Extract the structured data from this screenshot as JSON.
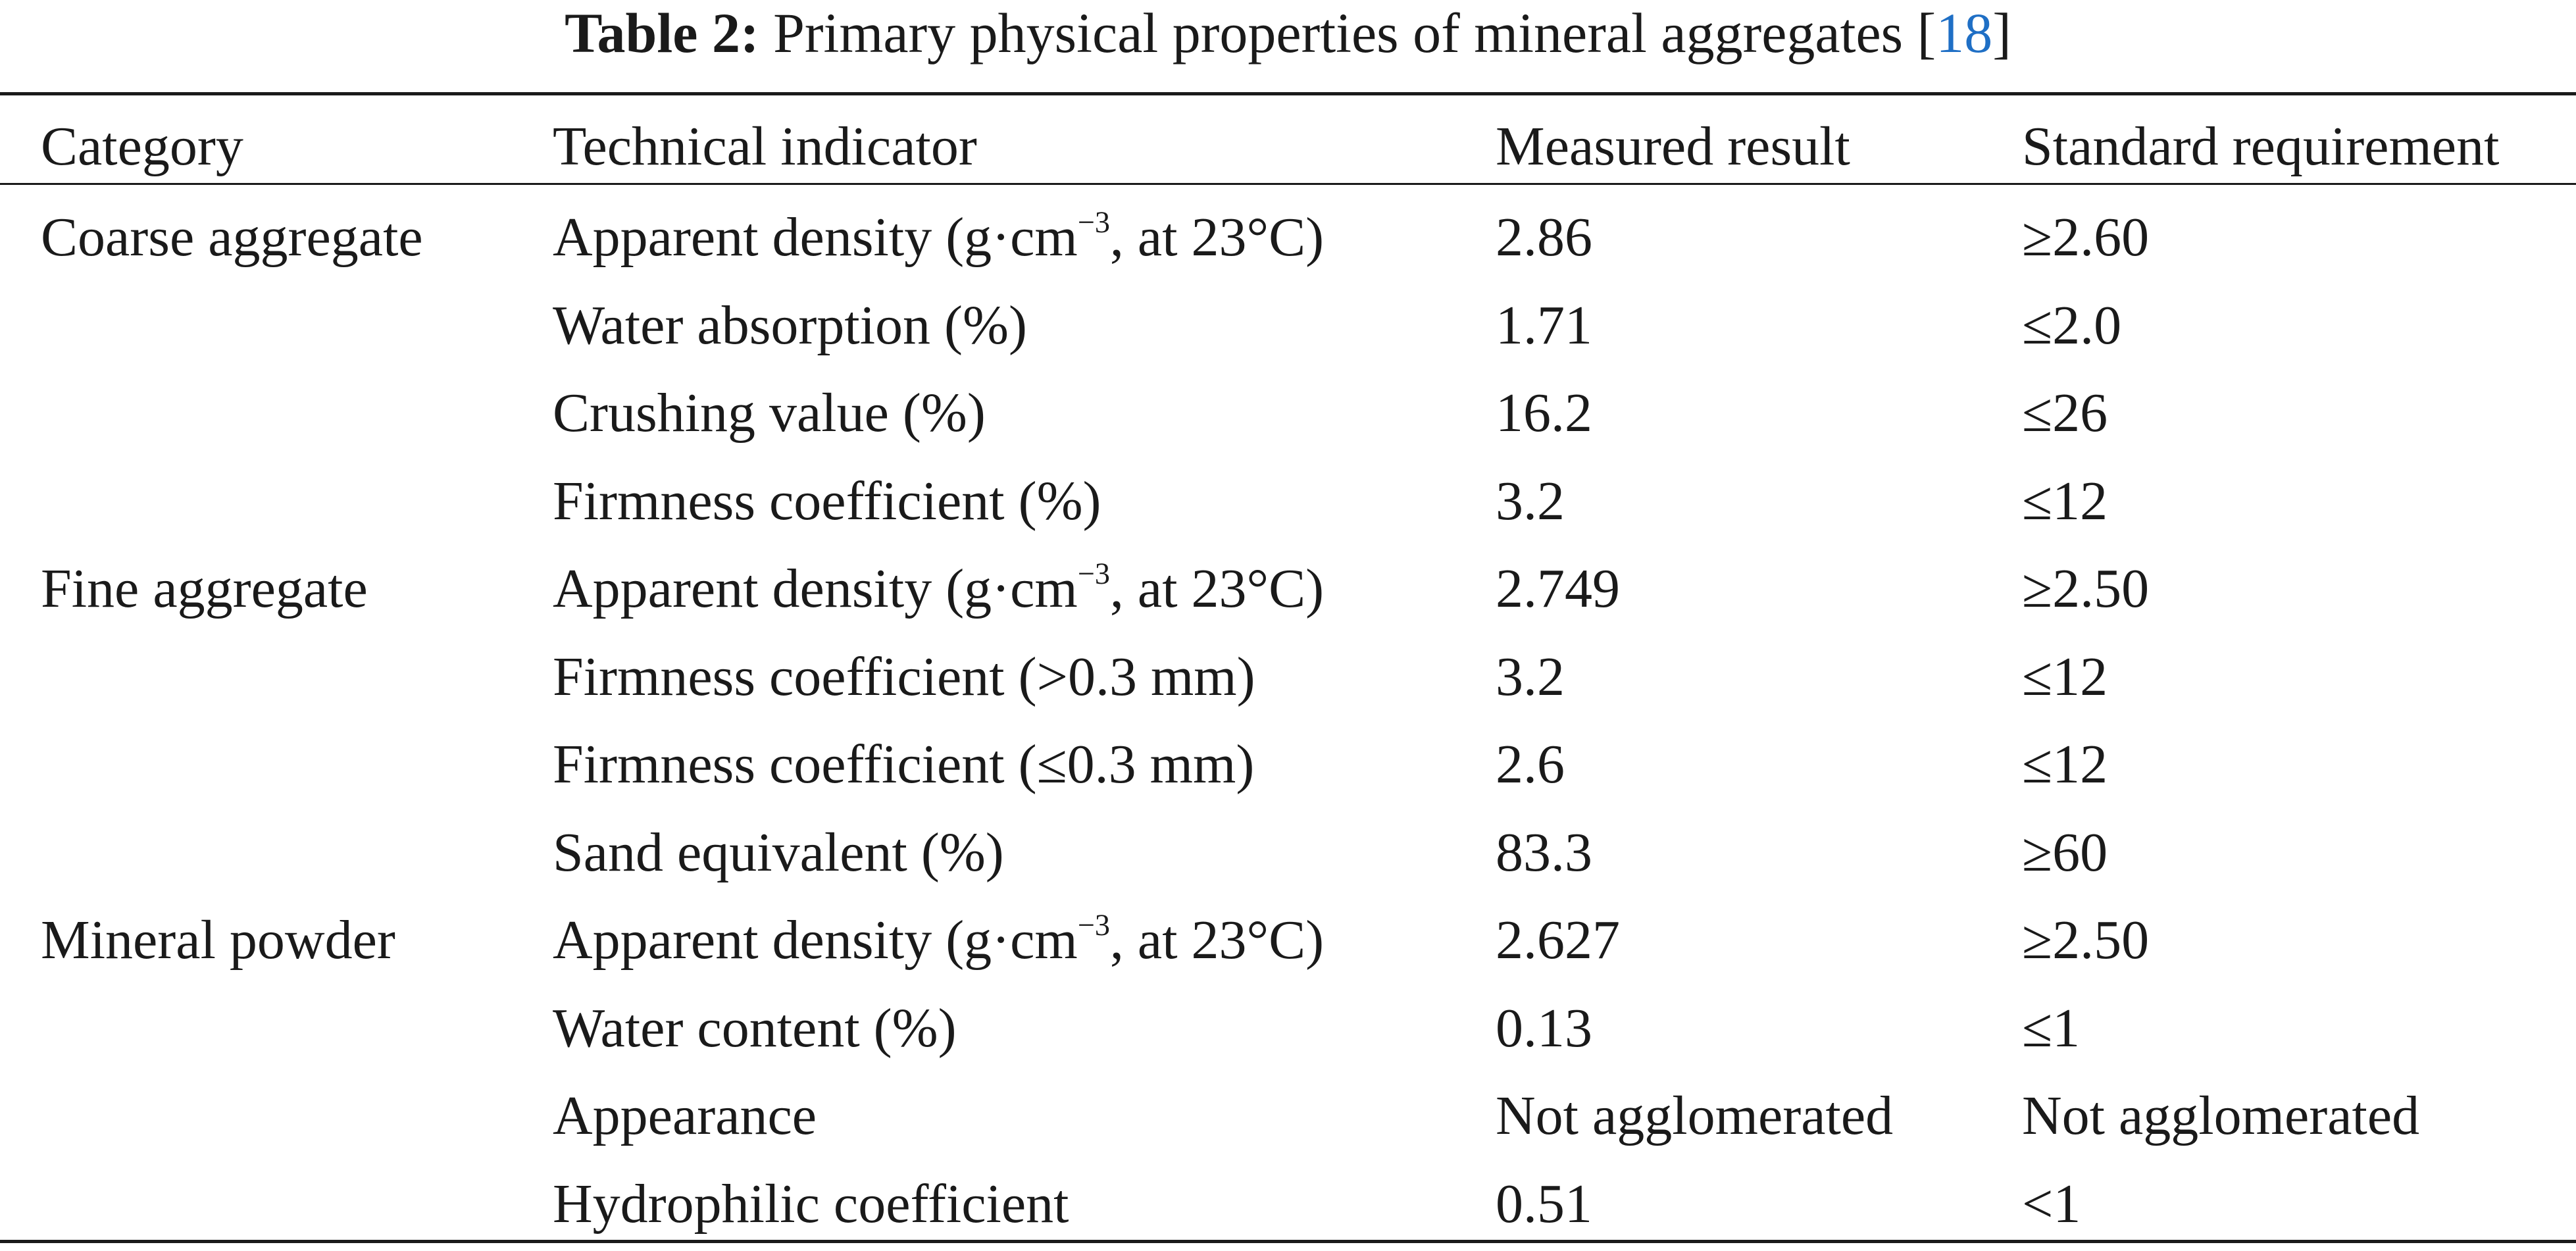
{
  "caption": {
    "label": "Table 2:",
    "text": " Primary physical properties of mineral aggregates [",
    "ref": "18",
    "close": "]"
  },
  "header": {
    "category": "Category",
    "indicator": "Technical indicator",
    "measured": "Measured result",
    "standard": "Standard requirement"
  },
  "rows": [
    {
      "category": "Coarse aggregate",
      "indicator_pre": "Apparent density (g·cm",
      "indicator_sup": "−3",
      "indicator_post": ", at 23°C)",
      "measured": "2.86",
      "standard": "≥2.60"
    },
    {
      "category": "",
      "indicator_pre": "Water absorption (%)",
      "indicator_sup": "",
      "indicator_post": "",
      "measured": "1.71",
      "standard": "≤2.0"
    },
    {
      "category": "",
      "indicator_pre": "Crushing value (%)",
      "indicator_sup": "",
      "indicator_post": "",
      "measured": "16.2",
      "standard": "≤26"
    },
    {
      "category": "",
      "indicator_pre": "Firmness coefficient (%)",
      "indicator_sup": "",
      "indicator_post": "",
      "measured": "3.2",
      "standard": "≤12"
    },
    {
      "category": "Fine aggregate",
      "indicator_pre": "Apparent density (g·cm",
      "indicator_sup": "−3",
      "indicator_post": ", at 23°C)",
      "measured": "2.749",
      "standard": "≥2.50"
    },
    {
      "category": "",
      "indicator_pre": "Firmness coefficient (>0.3 mm)",
      "indicator_sup": "",
      "indicator_post": "",
      "measured": "3.2",
      "standard": "≤12"
    },
    {
      "category": "",
      "indicator_pre": "Firmness coefficient (≤0.3 mm)",
      "indicator_sup": "",
      "indicator_post": "",
      "measured": "2.6",
      "standard": "≤12"
    },
    {
      "category": "",
      "indicator_pre": "Sand equivalent (%)",
      "indicator_sup": "",
      "indicator_post": "",
      "measured": "83.3",
      "standard": "≥60"
    },
    {
      "category": "Mineral powder",
      "indicator_pre": "Apparent density (g·cm",
      "indicator_sup": "−3",
      "indicator_post": ", at 23°C)",
      "measured": "2.627",
      "standard": "≥2.50"
    },
    {
      "category": "",
      "indicator_pre": "Water content (%)",
      "indicator_sup": "",
      "indicator_post": "",
      "measured": "0.13",
      "standard": "≤1"
    },
    {
      "category": "",
      "indicator_pre": "Appearance",
      "indicator_sup": "",
      "indicator_post": "",
      "measured": "Not agglomerated",
      "standard": "Not agglomerated"
    },
    {
      "category": "",
      "indicator_pre": "Hydrophilic coefficient",
      "indicator_sup": "",
      "indicator_post": "",
      "measured": "0.51",
      "standard": "<1"
    }
  ]
}
